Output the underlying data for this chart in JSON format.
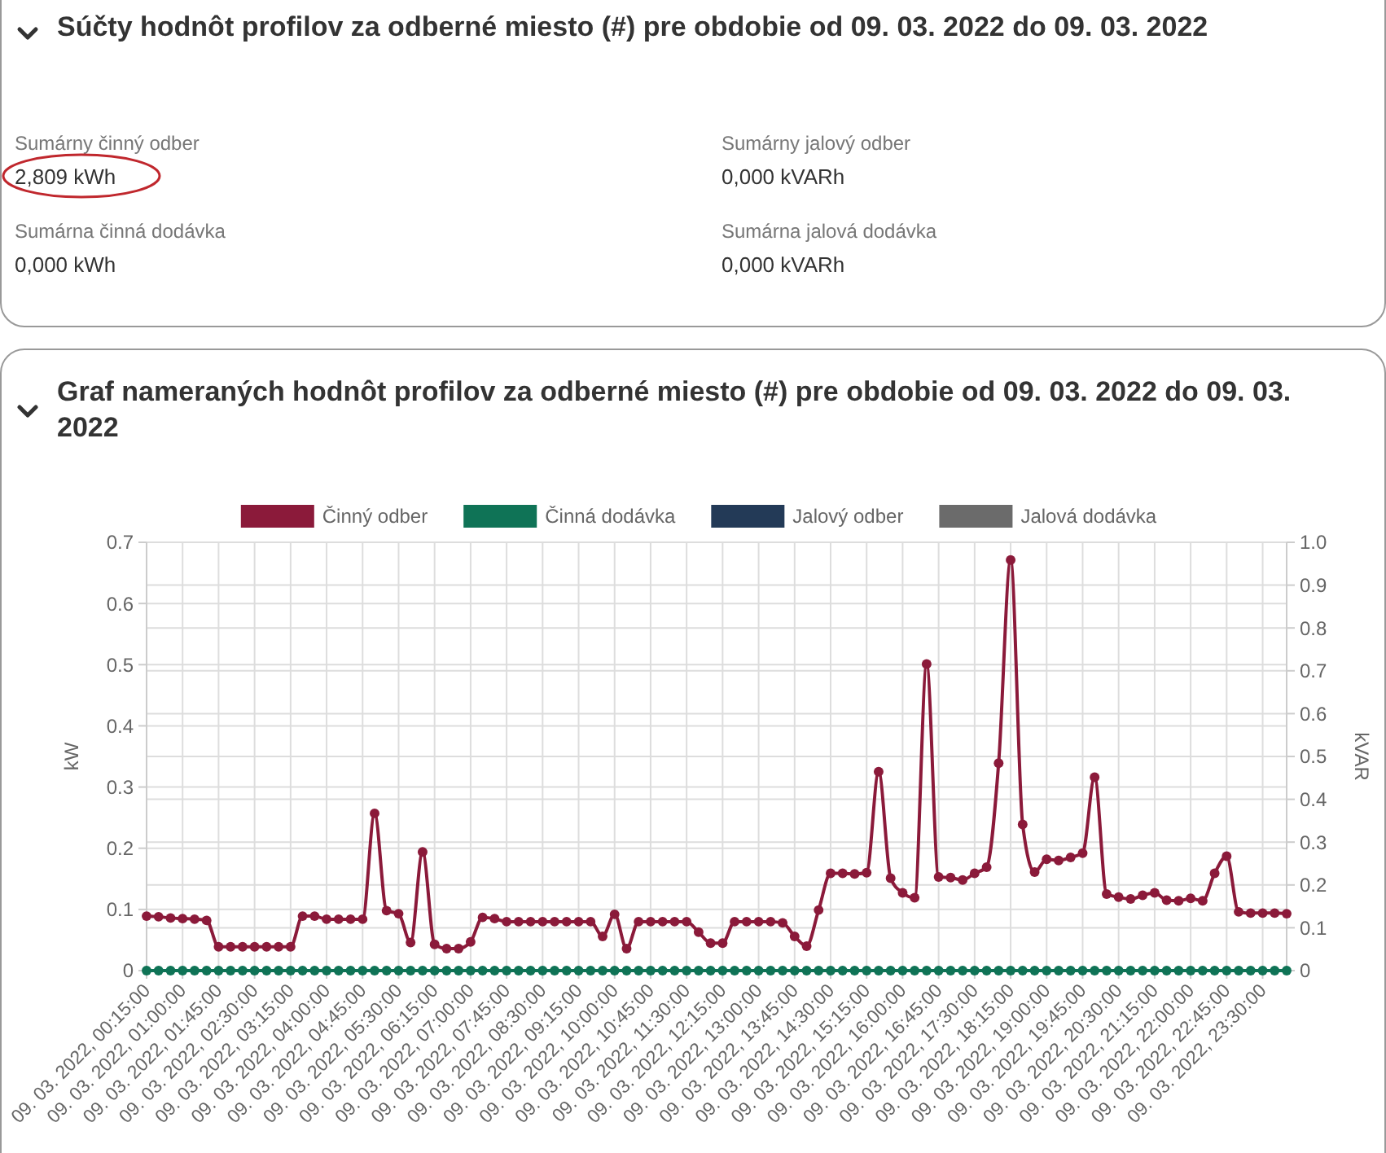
{
  "chart_data": [
    {
      "type": "other",
      "title": "Súčty hodnôt profilov za odberné miesto (#) pre obdobie od 09. 03. 2022 do 09. 03. 2022",
      "annotations": [
        "Sumárny činný odber",
        "2,809 kWh",
        "Sumárny jalový odber",
        "0,000 kVARh",
        "Sumárna činná dodávka",
        "0,000 kWh",
        "Sumárna jalová dodávka",
        "0,000 kVARh"
      ]
    },
    {
      "type": "line",
      "title": "Graf nameraných hodnôt profilov za odberné miesto (#) pre obdobie od 09. 03. 2022 do 09. 03. 2022",
      "ylabel": "kW",
      "y2label": "kVAR",
      "categories": [
        "09. 03. 2022, 00:15:00",
        null,
        null,
        "09. 03. 2022, 01:00:00",
        null,
        null,
        "09. 03. 2022, 01:45:00",
        null,
        null,
        "09. 03. 2022, 02:30:00",
        null,
        null,
        "09. 03. 2022, 03:15:00",
        null,
        null,
        "09. 03. 2022, 04:00:00",
        null,
        null,
        "09. 03. 2022, 04:45:00",
        null,
        null,
        "09. 03. 2022, 05:30:00",
        null,
        null,
        "09. 03. 2022, 06:15:00",
        null,
        null,
        "09. 03. 2022, 07:00:00",
        null,
        null,
        "09. 03. 2022, 07:45:00",
        null,
        null,
        "09. 03. 2022, 08:30:00",
        null,
        null,
        "09. 03. 2022, 09:15:00",
        null,
        null,
        "09. 03. 2022, 10:00:00",
        null,
        null,
        "09. 03. 2022, 10:45:00",
        null,
        null,
        "09. 03. 2022, 11:30:00",
        null,
        null,
        "09. 03. 2022, 12:15:00",
        null,
        null,
        "09. 03. 2022, 13:00:00",
        null,
        null,
        "09. 03. 2022, 13:45:00",
        null,
        null,
        "09. 03. 2022, 14:30:00",
        null,
        null,
        "09. 03. 2022, 15:15:00",
        null,
        null,
        "09. 03. 2022, 16:00:00",
        null,
        null,
        "09. 03. 2022, 16:45:00",
        null,
        null,
        "09. 03. 2022, 17:30:00",
        null,
        null,
        "09. 03. 2022, 18:15:00",
        null,
        null,
        "09. 03. 2022, 19:00:00",
        null,
        null,
        "09. 03. 2022, 19:45:00",
        null,
        null,
        "09. 03. 2022, 20:30:00",
        null,
        null,
        "09. 03. 2022, 21:15:00",
        null,
        null,
        "09. 03. 2022, 22:00:00",
        null,
        null,
        "09. 03. 2022, 22:45:00",
        null,
        null,
        "09. 03. 2022, 23:30:00",
        null,
        null
      ],
      "series": [
        {
          "name": "Činný odber",
          "color": "#8b1a3a",
          "values": [
            0.089,
            0.088,
            0.086,
            0.085,
            0.084,
            0.082,
            0.039,
            0.039,
            0.039,
            0.039,
            0.039,
            0.039,
            0.039,
            0.089,
            0.089,
            0.084,
            0.084,
            0.084,
            0.084,
            0.257,
            0.098,
            0.093,
            0.046,
            0.194,
            0.043,
            0.036,
            0.036,
            0.047,
            0.087,
            0.085,
            0.08,
            0.08,
            0.08,
            0.08,
            0.08,
            0.08,
            0.08,
            0.08,
            0.056,
            0.092,
            0.036,
            0.08,
            0.08,
            0.08,
            0.08,
            0.08,
            0.063,
            0.045,
            0.045,
            0.08,
            0.08,
            0.08,
            0.08,
            0.078,
            0.056,
            0.04,
            0.099,
            0.159,
            0.159,
            0.158,
            0.16,
            0.325,
            0.151,
            0.127,
            0.119,
            0.501,
            0.153,
            0.152,
            0.148,
            0.159,
            0.169,
            0.339,
            0.671,
            0.239,
            0.161,
            0.182,
            0.18,
            0.185,
            0.192,
            0.316,
            0.125,
            0.12,
            0.117,
            0.123,
            0.127,
            0.115,
            0.114,
            0.118,
            0.114,
            0.159,
            0.187,
            0.096,
            0.094,
            0.094,
            0.094,
            0.093
          ]
        },
        {
          "name": "Činná dodávka",
          "color": "#0f7356",
          "values": [
            0,
            0,
            0,
            0,
            0,
            0,
            0,
            0,
            0,
            0,
            0,
            0,
            0,
            0,
            0,
            0,
            0,
            0,
            0,
            0,
            0,
            0,
            0,
            0,
            0,
            0,
            0,
            0,
            0,
            0,
            0,
            0,
            0,
            0,
            0,
            0,
            0,
            0,
            0,
            0,
            0,
            0,
            0,
            0,
            0,
            0,
            0,
            0,
            0,
            0,
            0,
            0,
            0,
            0,
            0,
            0,
            0,
            0,
            0,
            0,
            0,
            0,
            0,
            0,
            0,
            0,
            0,
            0,
            0,
            0,
            0,
            0,
            0,
            0,
            0,
            0,
            0,
            0,
            0,
            0,
            0,
            0,
            0,
            0,
            0,
            0,
            0,
            0,
            0,
            0,
            0,
            0,
            0,
            0,
            0,
            0
          ]
        },
        {
          "name": "Jalový odber",
          "color": "#233a57",
          "values": [
            null,
            null,
            null,
            null,
            null,
            null,
            null,
            null,
            null,
            null,
            null,
            null,
            null,
            null,
            null,
            null,
            null,
            null,
            null,
            null,
            null,
            null,
            null,
            null,
            null,
            null,
            null,
            null,
            null,
            null,
            null,
            null,
            null,
            null,
            null,
            null,
            null,
            null,
            null,
            null,
            null,
            null,
            null,
            null,
            null,
            null,
            null,
            null,
            null,
            null,
            null,
            null,
            null,
            null,
            null,
            null,
            null,
            null,
            null,
            null,
            null,
            null,
            null,
            null,
            null,
            null,
            null,
            null,
            null,
            null,
            null,
            null,
            null,
            null,
            null,
            null,
            null,
            null,
            null,
            null,
            null,
            null,
            null,
            null,
            null,
            null,
            null,
            null,
            null,
            null,
            null,
            null,
            null,
            null,
            null,
            null
          ]
        },
        {
          "name": "Jalová dodávka",
          "color": "#6b6b6b",
          "values": [
            null,
            null,
            null,
            null,
            null,
            null,
            null,
            null,
            null,
            null,
            null,
            null,
            null,
            null,
            null,
            null,
            null,
            null,
            null,
            null,
            null,
            null,
            null,
            null,
            null,
            null,
            null,
            null,
            null,
            null,
            null,
            null,
            null,
            null,
            null,
            null,
            null,
            null,
            null,
            null,
            null,
            null,
            null,
            null,
            null,
            null,
            null,
            null,
            null,
            null,
            null,
            null,
            null,
            null,
            null,
            null,
            null,
            null,
            null,
            null,
            null,
            null,
            null,
            null,
            null,
            null,
            null,
            null,
            null,
            null,
            null,
            null,
            null,
            null,
            null,
            null,
            null,
            null,
            null,
            null,
            null,
            null,
            null,
            null,
            null,
            null,
            null,
            null,
            null,
            null,
            null,
            null,
            null,
            null,
            null,
            null
          ]
        }
      ],
      "ylim": [
        0,
        0.7
      ],
      "yticks": [
        0,
        0.1,
        0.2,
        0.3,
        0.4,
        0.5,
        0.6,
        0.7
      ],
      "y2lim": [
        0,
        1
      ],
      "y2ticks": [
        0,
        0.1,
        0.2,
        0.3,
        0.4,
        0.5,
        0.6,
        0.7,
        0.8,
        0.9,
        {
          "value": 1,
          "label": "1.0"
        }
      ],
      "grid": true,
      "legend": "top",
      "marker": "circle",
      "line_style": "solid"
    }
  ]
}
